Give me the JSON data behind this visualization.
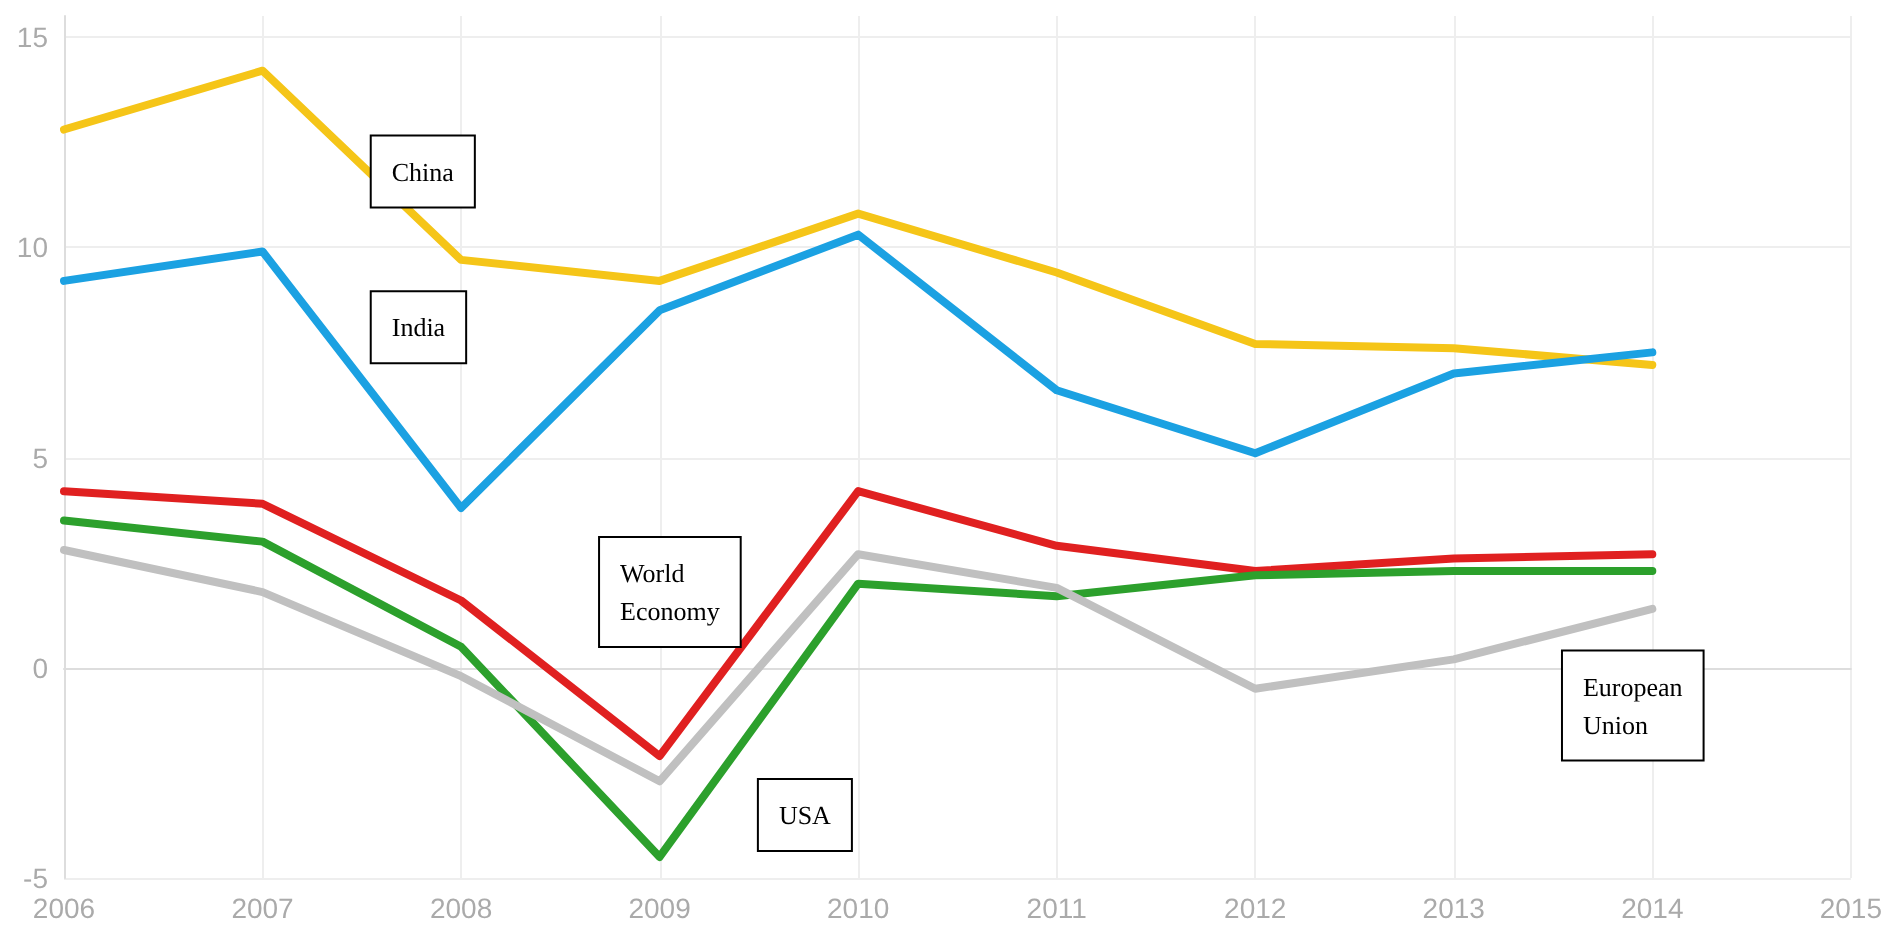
{
  "chart_data": {
    "type": "line",
    "x": [
      2006,
      2007,
      2008,
      2009,
      2010,
      2011,
      2012,
      2013,
      2014
    ],
    "series": [
      {
        "name": "China",
        "color": "#f5c518",
        "values": [
          12.8,
          14.2,
          9.7,
          9.2,
          10.8,
          9.4,
          7.7,
          7.6,
          7.2
        ]
      },
      {
        "name": "India",
        "color": "#1ba1e2",
        "values": [
          9.2,
          9.9,
          3.8,
          8.5,
          10.3,
          6.6,
          5.1,
          7.0,
          7.5
        ]
      },
      {
        "name": "World Economy",
        "color": "#e02020",
        "values": [
          4.2,
          3.9,
          1.6,
          -2.1,
          4.2,
          2.9,
          2.3,
          2.6,
          2.7
        ]
      },
      {
        "name": "USA",
        "color": "#2ca02c",
        "values": [
          3.5,
          3.0,
          0.5,
          -4.5,
          2.0,
          1.7,
          2.2,
          2.3,
          2.3
        ]
      },
      {
        "name": "European Union",
        "color": "#c0c0c0",
        "values": [
          2.8,
          1.8,
          -0.2,
          -2.7,
          2.7,
          1.9,
          -0.5,
          0.2,
          1.4
        ]
      }
    ],
    "xlim": [
      2006,
      2015
    ],
    "xticks": [
      2006,
      2007,
      2008,
      2009,
      2010,
      2011,
      2012,
      2013,
      2014,
      2015
    ],
    "ylim": [
      -5,
      15.5
    ],
    "yticks": [
      -5,
      0,
      5,
      10,
      15
    ],
    "grid": true,
    "legend": false,
    "marker": "none",
    "line_style": "solid"
  }
}
